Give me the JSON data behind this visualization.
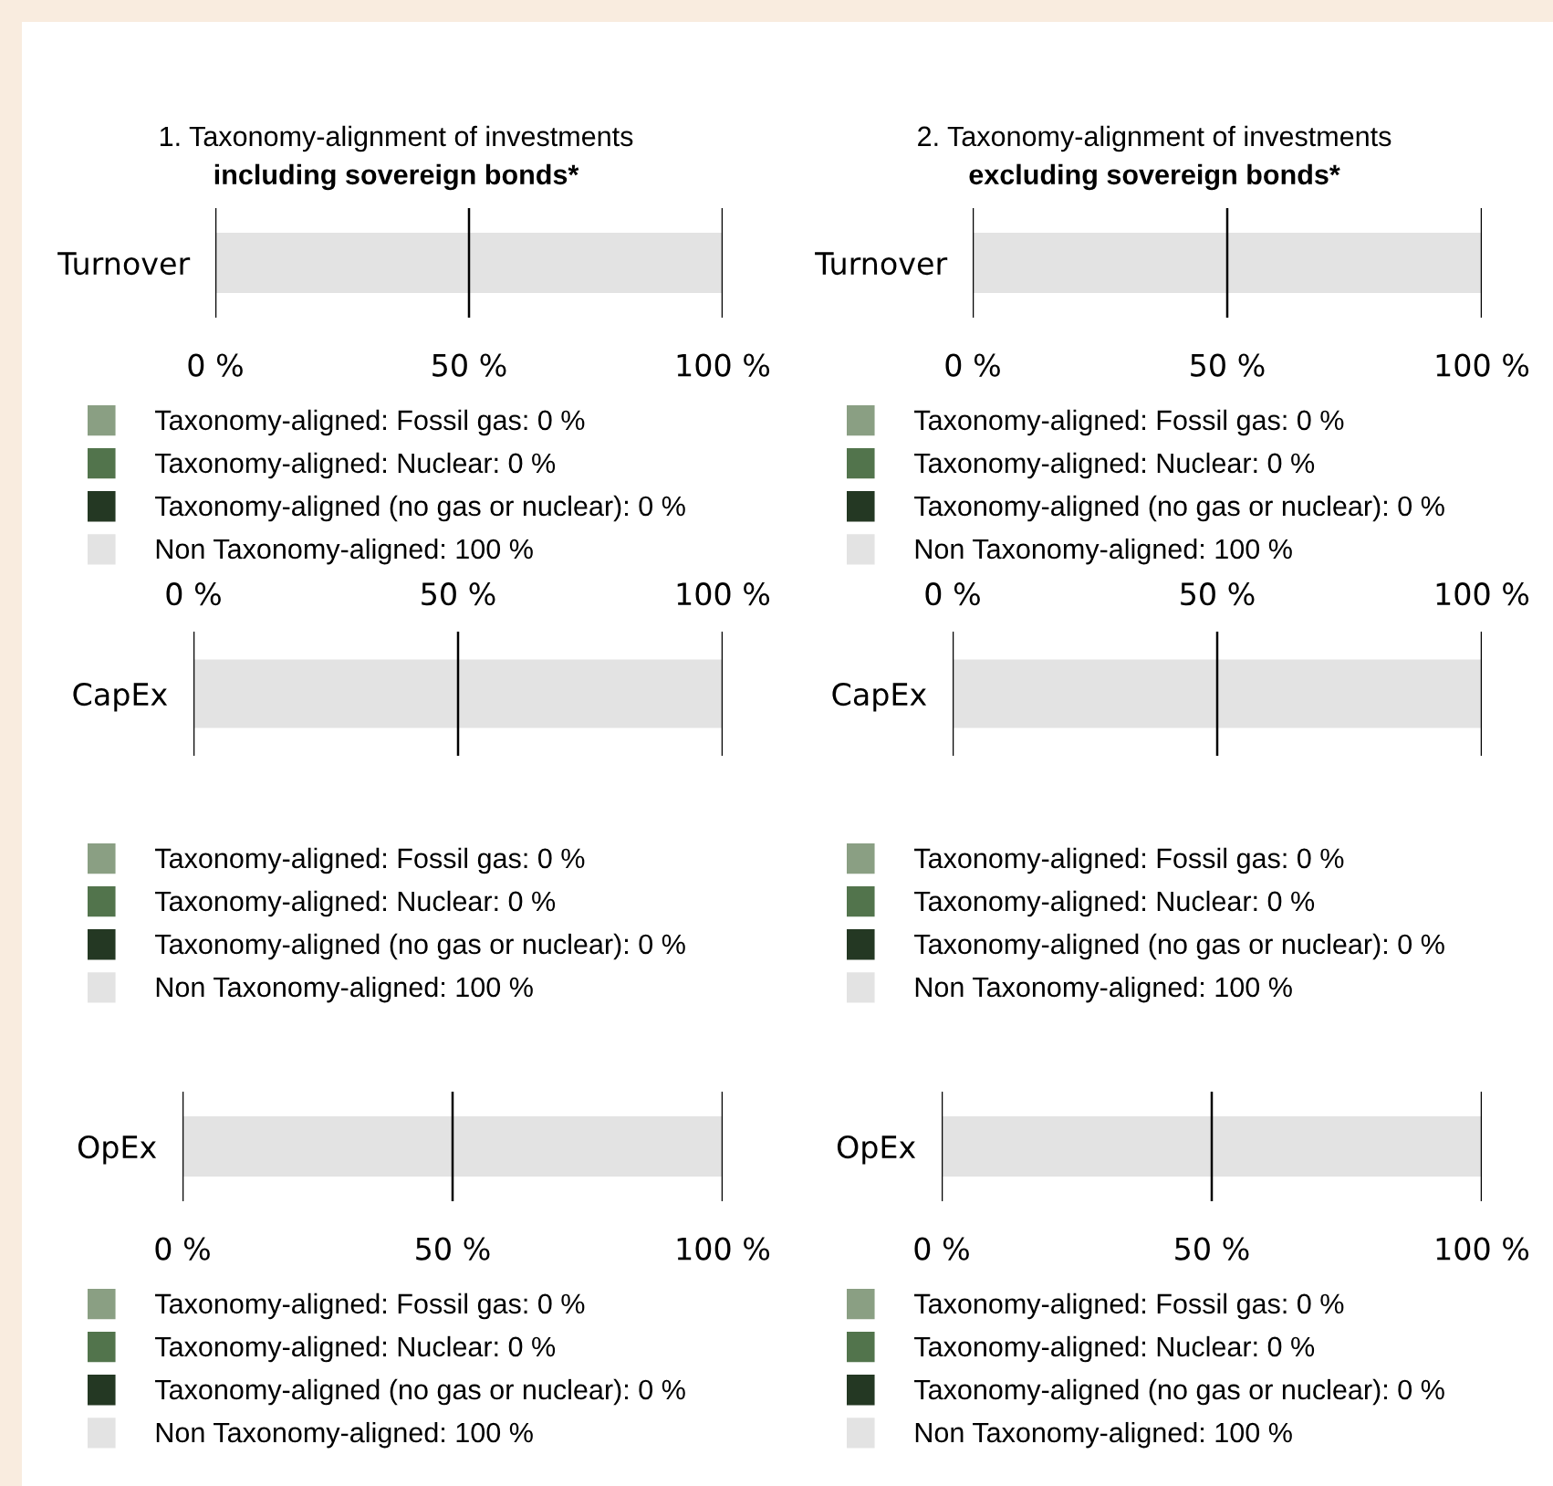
{
  "chart_data": [
    {
      "type": "bar",
      "orientation": "horizontal",
      "stacked": true,
      "title": "1. Taxonomy-alignment of investments",
      "subtitle": "including sovereign bonds*",
      "categories": [
        "Turnover"
      ],
      "xlim": [
        0,
        100
      ],
      "xticks": [
        {
          "value": 0,
          "label": "0 %"
        },
        {
          "value": 50,
          "label": "50 %"
        },
        {
          "value": 100,
          "label": "100 %"
        }
      ],
      "grid": "x",
      "legend": "bottom",
      "series": [
        {
          "name": "Taxonomy-aligned: Fossil gas: 0 %",
          "color": "#8a9f83",
          "values": [
            0
          ]
        },
        {
          "name": "Taxonomy-aligned: Nuclear: 0 %",
          "color": "#52744c",
          "values": [
            0
          ]
        },
        {
          "name": "Taxonomy-aligned (no gas or nuclear): 0 %",
          "color": "#243823",
          "values": [
            0
          ]
        },
        {
          "name": "Non Taxonomy-aligned: 100 %",
          "color": "#e3e3e3",
          "values": [
            100
          ]
        }
      ]
    },
    {
      "type": "bar",
      "orientation": "horizontal",
      "stacked": true,
      "title": "2. Taxonomy-alignment of investments",
      "subtitle": "excluding sovereign bonds*",
      "categories": [
        "Turnover"
      ],
      "xlim": [
        0,
        100
      ],
      "xticks": [
        {
          "value": 0,
          "label": "0 %"
        },
        {
          "value": 50,
          "label": "50 %"
        },
        {
          "value": 100,
          "label": "100 %"
        }
      ],
      "grid": "x",
      "legend": "bottom",
      "series": [
        {
          "name": "Taxonomy-aligned: Fossil gas: 0 %",
          "color": "#8a9f83",
          "values": [
            0
          ]
        },
        {
          "name": "Taxonomy-aligned: Nuclear: 0 %",
          "color": "#52744c",
          "values": [
            0
          ]
        },
        {
          "name": "Taxonomy-aligned (no gas or nuclear): 0 %",
          "color": "#243823",
          "values": [
            0
          ]
        },
        {
          "name": "Non Taxonomy-aligned: 100 %",
          "color": "#e3e3e3",
          "values": [
            100
          ]
        }
      ]
    },
    {
      "type": "bar",
      "orientation": "horizontal",
      "stacked": true,
      "categories": [
        "CapEx"
      ],
      "xlim": [
        0,
        100
      ],
      "xticks": [
        {
          "value": 0,
          "label": "0 %"
        },
        {
          "value": 50,
          "label": "50 %"
        },
        {
          "value": 100,
          "label": "100 %"
        }
      ],
      "grid": "x",
      "legend": "bottom",
      "series": [
        {
          "name": "Taxonomy-aligned: Fossil gas: 0 %",
          "color": "#8a9f83",
          "values": [
            0
          ]
        },
        {
          "name": "Taxonomy-aligned: Nuclear: 0 %",
          "color": "#52744c",
          "values": [
            0
          ]
        },
        {
          "name": "Taxonomy-aligned (no gas or nuclear): 0 %",
          "color": "#243823",
          "values": [
            0
          ]
        },
        {
          "name": "Non Taxonomy-aligned: 100 %",
          "color": "#e3e3e3",
          "values": [
            100
          ]
        }
      ]
    },
    {
      "type": "bar",
      "orientation": "horizontal",
      "stacked": true,
      "categories": [
        "CapEx"
      ],
      "xlim": [
        0,
        100
      ],
      "xticks": [
        {
          "value": 0,
          "label": "0 %"
        },
        {
          "value": 50,
          "label": "50 %"
        },
        {
          "value": 100,
          "label": "100 %"
        }
      ],
      "grid": "x",
      "legend": "bottom",
      "series": [
        {
          "name": "Taxonomy-aligned: Fossil gas: 0 %",
          "color": "#8a9f83",
          "values": [
            0
          ]
        },
        {
          "name": "Taxonomy-aligned: Nuclear: 0 %",
          "color": "#52744c",
          "values": [
            0
          ]
        },
        {
          "name": "Taxonomy-aligned (no gas or nuclear): 0 %",
          "color": "#243823",
          "values": [
            0
          ]
        },
        {
          "name": "Non Taxonomy-aligned: 100 %",
          "color": "#e3e3e3",
          "values": [
            100
          ]
        }
      ]
    },
    {
      "type": "bar",
      "orientation": "horizontal",
      "stacked": true,
      "categories": [
        "OpEx"
      ],
      "xlim": [
        0,
        100
      ],
      "xticks": [
        {
          "value": 0,
          "label": "0 %"
        },
        {
          "value": 50,
          "label": "50 %"
        },
        {
          "value": 100,
          "label": "100 %"
        }
      ],
      "grid": "x",
      "legend": "bottom",
      "series": [
        {
          "name": "Taxonomy-aligned: Fossil gas: 0 %",
          "color": "#8a9f83",
          "values": [
            0
          ]
        },
        {
          "name": "Taxonomy-aligned: Nuclear: 0 %",
          "color": "#52744c",
          "values": [
            0
          ]
        },
        {
          "name": "Taxonomy-aligned (no gas or nuclear): 0 %",
          "color": "#243823",
          "values": [
            0
          ]
        },
        {
          "name": "Non Taxonomy-aligned: 100 %",
          "color": "#e3e3e3",
          "values": [
            100
          ]
        }
      ]
    },
    {
      "type": "bar",
      "orientation": "horizontal",
      "stacked": true,
      "categories": [
        "OpEx"
      ],
      "xlim": [
        0,
        100
      ],
      "xticks": [
        {
          "value": 0,
          "label": "0 %"
        },
        {
          "value": 50,
          "label": "50 %"
        },
        {
          "value": 100,
          "label": "100 %"
        }
      ],
      "grid": "x",
      "legend": "bottom",
      "series": [
        {
          "name": "Taxonomy-aligned: Fossil gas: 0 %",
          "color": "#8a9f83",
          "values": [
            0
          ]
        },
        {
          "name": "Taxonomy-aligned: Nuclear: 0 %",
          "color": "#52744c",
          "values": [
            0
          ]
        },
        {
          "name": "Taxonomy-aligned (no gas or nuclear): 0 %",
          "color": "#243823",
          "values": [
            0
          ]
        },
        {
          "name": "Non Taxonomy-aligned: 100 %",
          "color": "#e3e3e3",
          "values": [
            100
          ]
        }
      ]
    }
  ]
}
